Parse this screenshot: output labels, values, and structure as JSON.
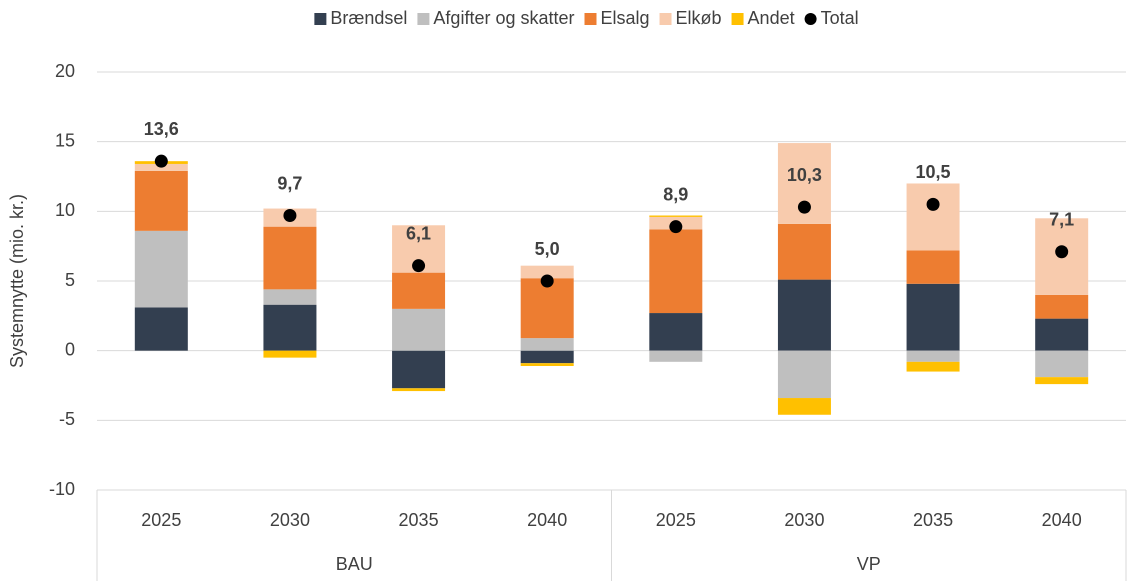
{
  "chart_data": {
    "type": "stacked_bar",
    "y_label": "Systemnytte (mio. kr.)",
    "groups": [
      {
        "label": "BAU",
        "categories": [
          "2025",
          "2030",
          "2035",
          "2040"
        ]
      },
      {
        "label": "VP",
        "categories": [
          "2025",
          "2030",
          "2035",
          "2040"
        ]
      }
    ],
    "series": [
      {
        "name": "Brændsel",
        "color": "#333f50",
        "values": [
          3.1,
          3.3,
          -2.7,
          -0.9,
          2.7,
          5.1,
          4.8,
          2.3
        ]
      },
      {
        "name": "Afgifter og skatter",
        "color": "#bfbfbf",
        "values": [
          5.5,
          1.1,
          3.0,
          0.9,
          -0.8,
          -3.4,
          -0.8,
          -1.9
        ]
      },
      {
        "name": "Elsalg",
        "color": "#ed7d31",
        "values": [
          4.3,
          4.5,
          2.6,
          4.3,
          6.0,
          4.0,
          2.4,
          1.7
        ]
      },
      {
        "name": "Elkøb",
        "color": "#f8cbad",
        "values": [
          0.5,
          1.3,
          3.4,
          0.9,
          0.9,
          5.8,
          4.8,
          5.5
        ]
      },
      {
        "name": "Andet",
        "color": "#ffc000",
        "values": [
          0.2,
          -0.5,
          -0.2,
          -0.2,
          0.1,
          -1.2,
          -0.7,
          -0.5
        ]
      },
      {
        "name": "Total",
        "color": "#000000",
        "marker": "dot",
        "values": [
          13.6,
          9.7,
          6.1,
          5.0,
          8.9,
          10.3,
          10.5,
          7.1
        ],
        "value_labels": [
          "13,6",
          "9,7",
          "6,1",
          "5,0",
          "8,9",
          "10,3",
          "10,5",
          "7,1"
        ]
      }
    ],
    "ylim": [
      -10,
      20
    ],
    "yticks": [
      -10,
      -5,
      0,
      5,
      10,
      15,
      20
    ],
    "grid": true,
    "legend": "top"
  }
}
